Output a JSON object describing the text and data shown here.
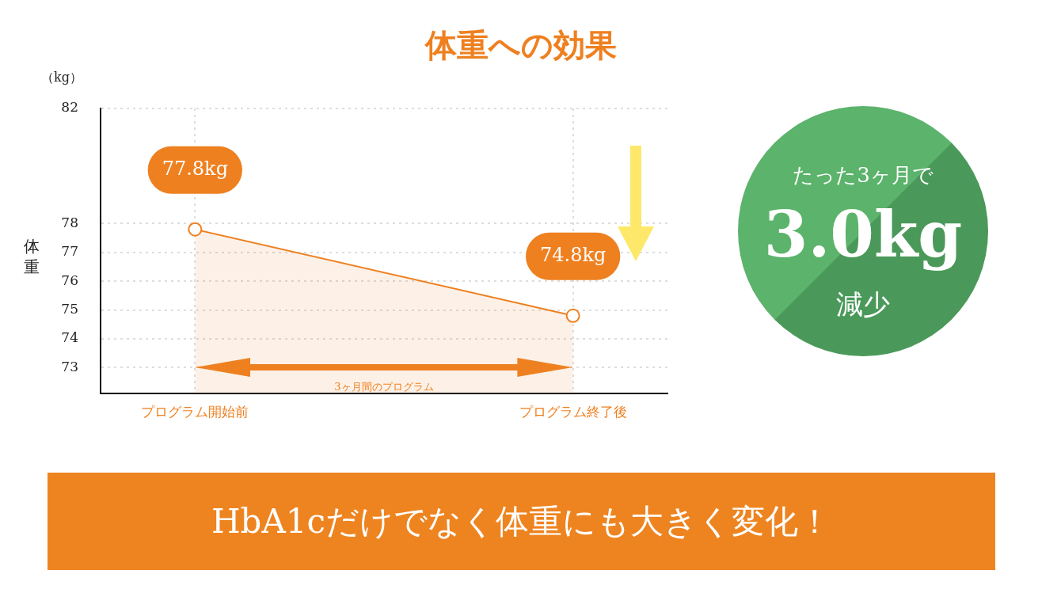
{
  "chart_data": {
    "type": "area",
    "title": "体重への効果",
    "ylabel": "体重",
    "categories": [
      "プログラム開始前",
      "プログラム終了後"
    ],
    "series": [
      {
        "color": "#ee8020",
        "values": [
          77.8,
          74.8
        ],
        "value_labels": [
          "77.8kg",
          "74.8kg"
        ]
      }
    ],
    "ylim": [
      72.1,
      82
    ],
    "yticks": [
      73,
      74,
      75,
      76,
      77,
      78,
      82
    ],
    "grid": true,
    "marker": "circle",
    "annotations": [
      "（kg）",
      "3ヶ月間のプログラム",
      "たった3ヶ月で",
      "3.0kg",
      "減少",
      "HbA1cだけでなく体重にも大きく変化！"
    ]
  }
}
